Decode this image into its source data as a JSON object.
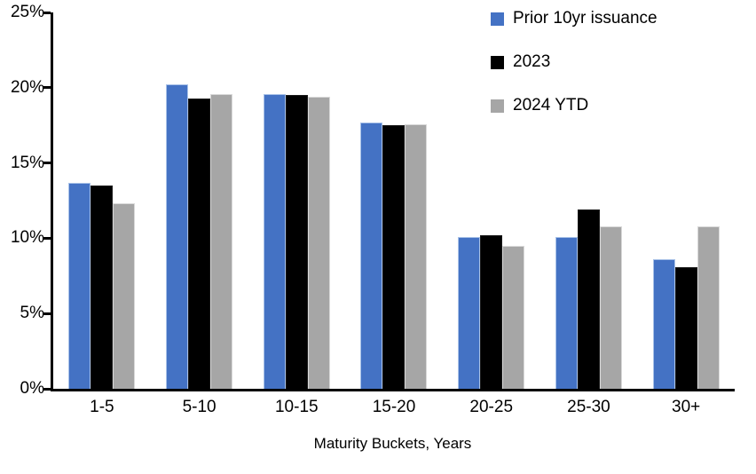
{
  "chart_data": {
    "type": "bar",
    "title": "",
    "xlabel": "Maturity Buckets, Years",
    "ylabel": "",
    "ylim": [
      0,
      25
    ],
    "ytick_step": 5,
    "ytick_labels": [
      "0%",
      "5%",
      "10%",
      "15%",
      "20%",
      "25%"
    ],
    "grid": false,
    "legend_position": "top-right",
    "categories": [
      "1-5",
      "5-10",
      "10-15",
      "15-20",
      "20-25",
      "25-30",
      "30+"
    ],
    "series": [
      {
        "name": "Prior 10yr issuance",
        "color": "#4472C4",
        "edge_color": "#A9C2E8",
        "values": [
          13.7,
          20.2,
          19.6,
          17.7,
          10.1,
          10.1,
          8.6
        ]
      },
      {
        "name": "2023",
        "color": "#000000",
        "edge_color": "#1A1A1A",
        "values": [
          13.5,
          19.3,
          19.5,
          17.5,
          10.2,
          11.9,
          8.1
        ]
      },
      {
        "name": "2024 YTD",
        "color": "#A6A6A6",
        "edge_color": "#D9D9D9",
        "values": [
          12.3,
          19.6,
          19.4,
          17.6,
          9.5,
          10.8,
          10.8
        ]
      }
    ]
  }
}
